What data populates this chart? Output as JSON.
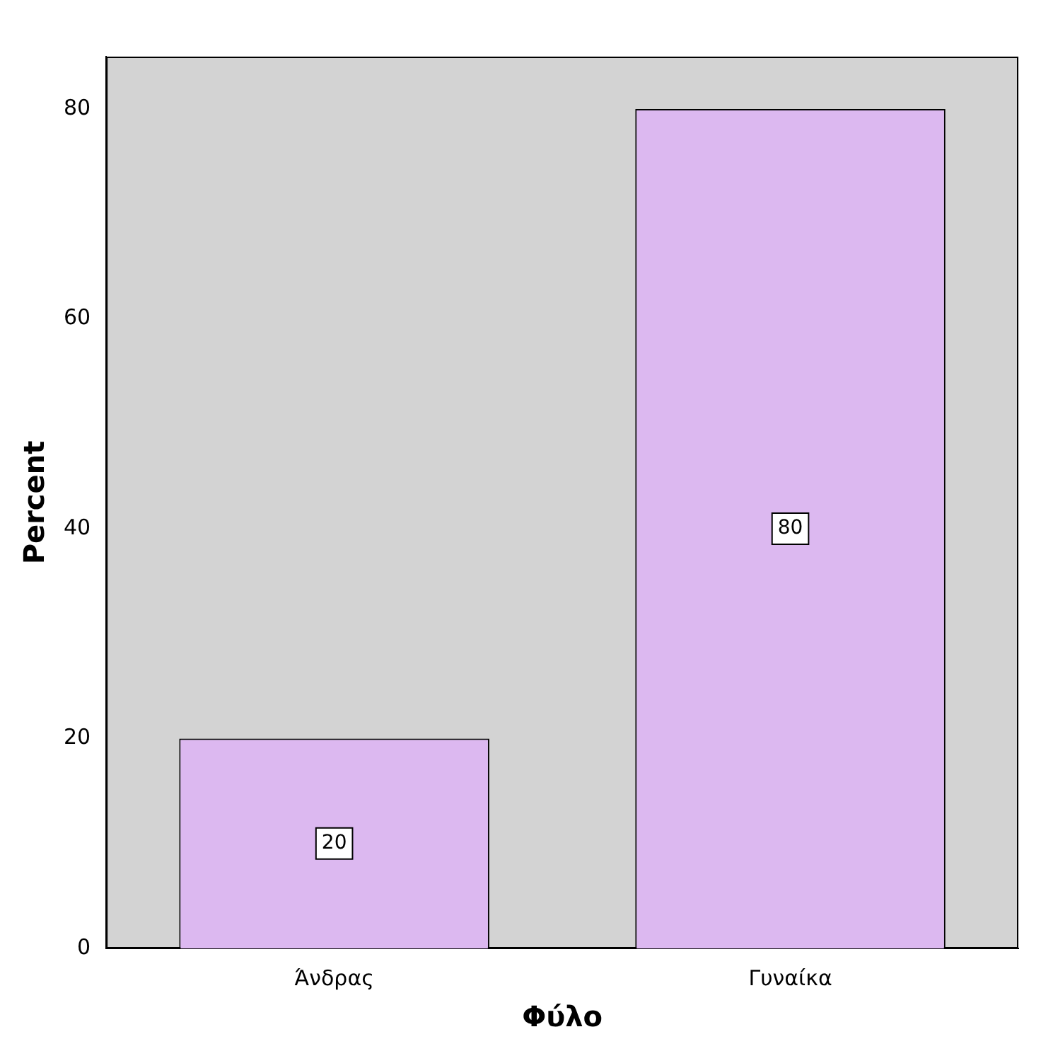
{
  "chart_data": {
    "type": "bar",
    "categories": [
      "Άνδρας",
      "Γυναίκα"
    ],
    "values": [
      20,
      80
    ],
    "color": "#dcb8f0",
    "xlabel": "Φύλο",
    "ylabel": "Percent",
    "ylim": [
      0,
      85
    ],
    "yticks": [
      0,
      20,
      40,
      60,
      80
    ],
    "grid": false,
    "legend": false,
    "data_labels": true
  }
}
